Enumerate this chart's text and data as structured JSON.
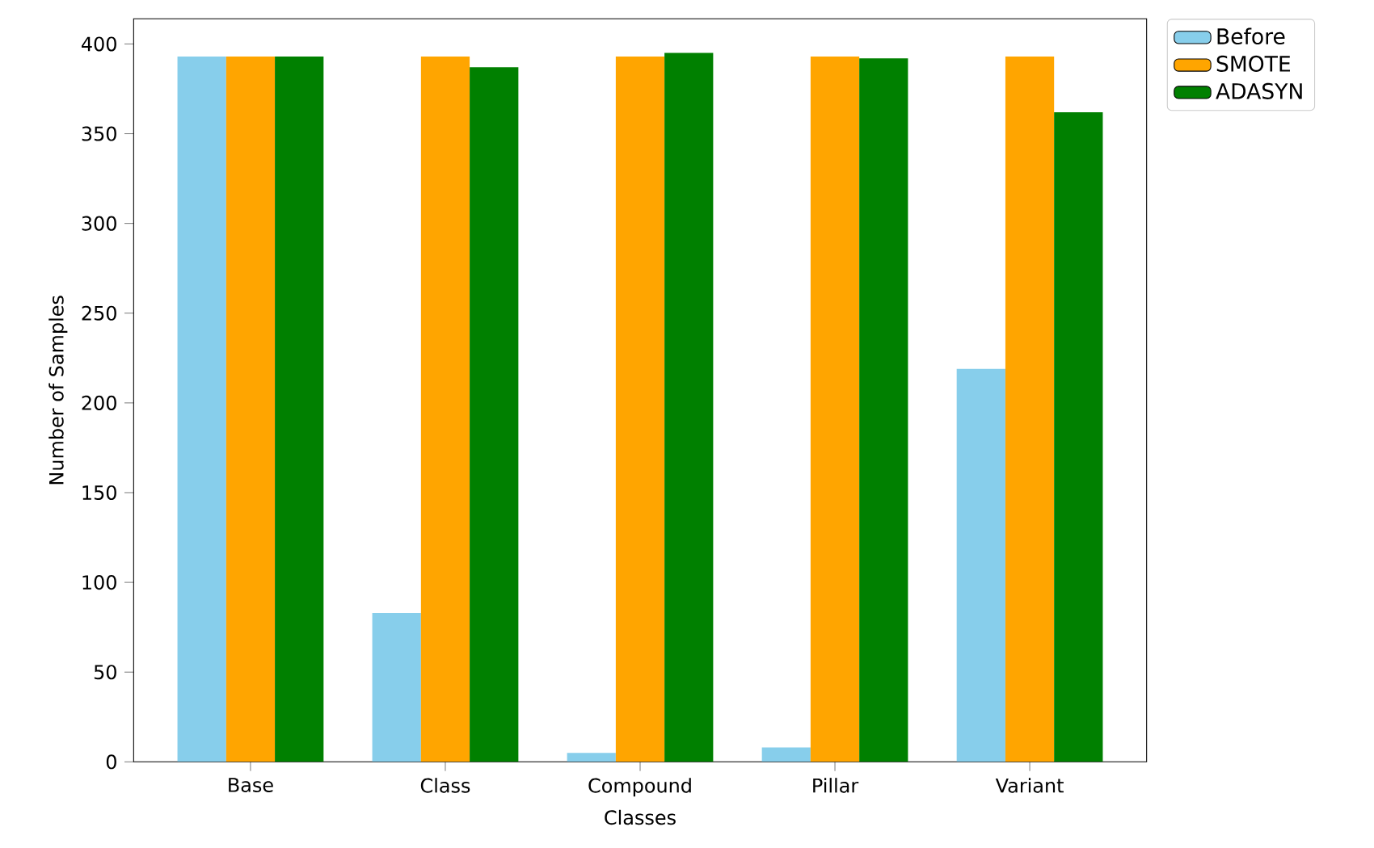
{
  "chart_data": {
    "type": "bar",
    "xlabel": "Classes",
    "ylabel": "Number of Samples",
    "categories": [
      "Base",
      "Class",
      "Compound",
      "Pillar",
      "Variant"
    ],
    "series": [
      {
        "name": "Before",
        "color": "#87ceeb",
        "values": [
          393,
          83,
          5,
          8,
          219
        ]
      },
      {
        "name": "SMOTE",
        "color": "#ffa500",
        "values": [
          393,
          393,
          393,
          393,
          393
        ]
      },
      {
        "name": "ADASYN",
        "color": "#008000",
        "values": [
          393,
          387,
          395,
          392,
          362
        ]
      }
    ],
    "ylim": [
      0,
      414
    ],
    "yticks": [
      0,
      50,
      100,
      150,
      200,
      250,
      300,
      350,
      400
    ],
    "grid": false,
    "legend": "top right"
  }
}
